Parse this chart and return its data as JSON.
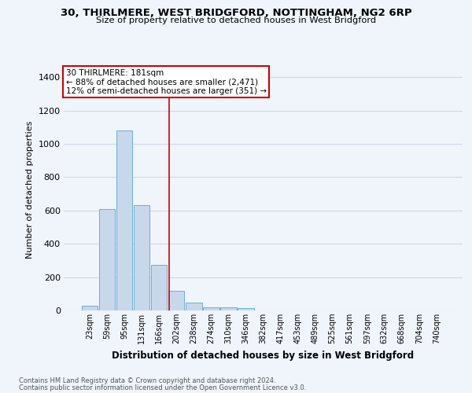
{
  "title1": "30, THIRLMERE, WEST BRIDGFORD, NOTTINGHAM, NG2 6RP",
  "title2": "Size of property relative to detached houses in West Bridgford",
  "xlabel": "Distribution of detached houses by size in West Bridgford",
  "ylabel": "Number of detached properties",
  "bar_values": [
    30,
    610,
    1080,
    630,
    275,
    120,
    45,
    20,
    20,
    15,
    0,
    0,
    0,
    0,
    0,
    0,
    0,
    0,
    0,
    0,
    0
  ],
  "bar_labels": [
    "23sqm",
    "59sqm",
    "95sqm",
    "131sqm",
    "166sqm",
    "202sqm",
    "238sqm",
    "274sqm",
    "310sqm",
    "346sqm",
    "382sqm",
    "417sqm",
    "453sqm",
    "489sqm",
    "525sqm",
    "561sqm",
    "597sqm",
    "632sqm",
    "668sqm",
    "704sqm",
    "740sqm"
  ],
  "bar_color": "#c8d8eb",
  "bar_edge_color": "#6baed6",
  "bar_linewidth": 0.7,
  "red_line_x": 4.58,
  "annotation_title": "30 THIRLMERE: 181sqm",
  "annotation_line1": "← 88% of detached houses are smaller (2,471)",
  "annotation_line2": "12% of semi-detached houses are larger (351) →",
  "annotation_box_color": "#ffffff",
  "annotation_box_edge": "#cc0000",
  "red_line_color": "#cc0000",
  "grid_color": "#d0d8e8",
  "ylim": [
    0,
    1450
  ],
  "yticks": [
    0,
    200,
    400,
    600,
    800,
    1000,
    1200,
    1400
  ],
  "footer1": "Contains HM Land Registry data © Crown copyright and database right 2024.",
  "footer2": "Contains public sector information licensed under the Open Government Licence v3.0.",
  "bg_color": "#f0f4fb",
  "plot_bg_color": "#f0f4fb"
}
